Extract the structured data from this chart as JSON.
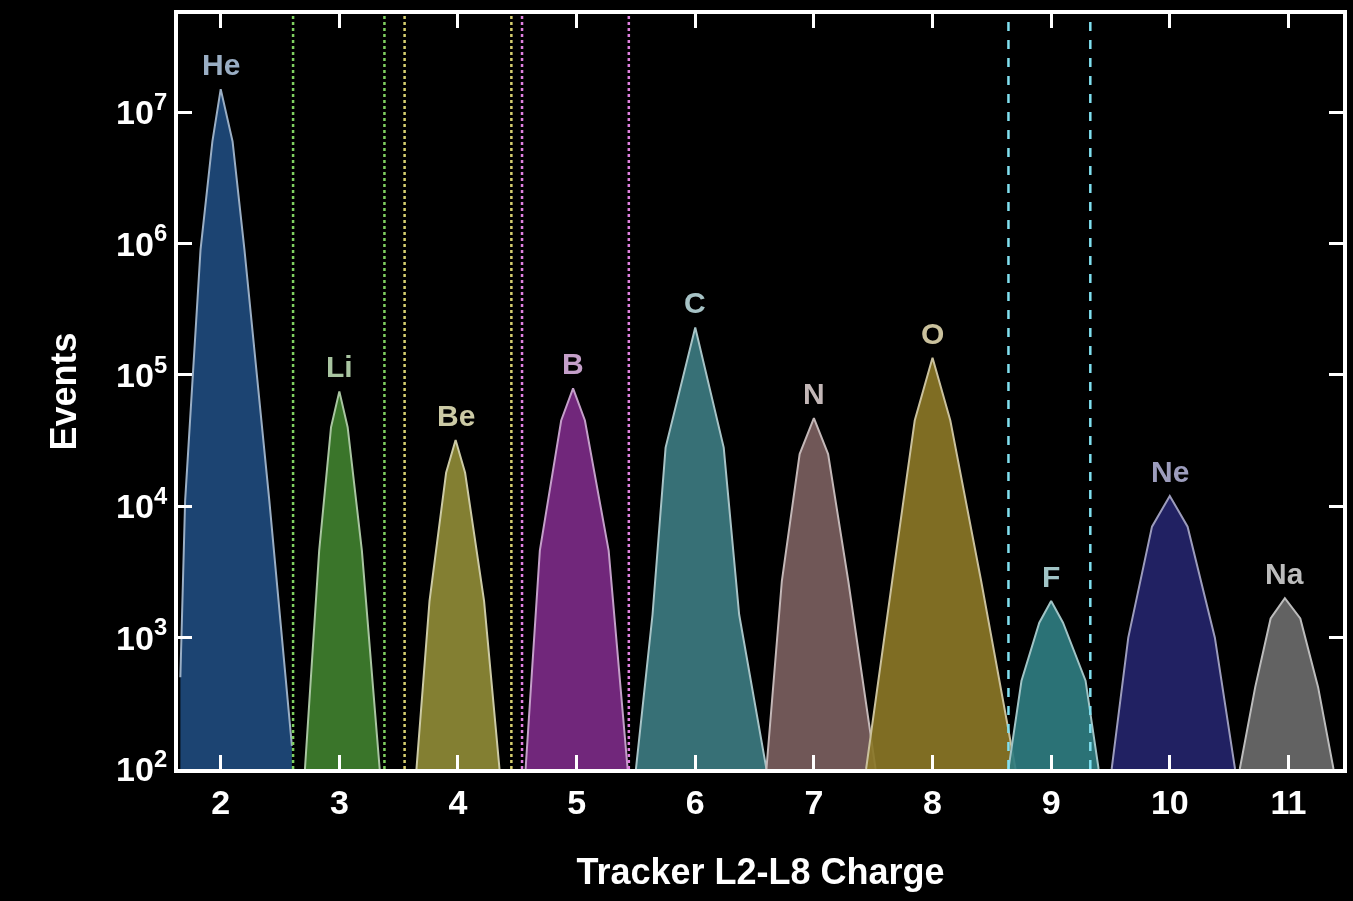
{
  "chart_data": {
    "type": "area",
    "xlabel": "Tracker L2-L8 Charge",
    "ylabel": "Events",
    "log": "y",
    "grid": false,
    "legend": false,
    "line_style": "solid",
    "marker": "none",
    "xlim": [
      1.64,
      11.46
    ],
    "xticks": [
      2,
      3,
      4,
      5,
      6,
      7,
      8,
      9,
      10,
      11
    ],
    "ylim": [
      100,
      56000000
    ],
    "yticks": [
      {
        "value": 100,
        "label": "10$^{2}$"
      },
      {
        "value": 1000,
        "label": "10$^{3}$"
      },
      {
        "value": 10000,
        "label": "10$^{4}$"
      },
      {
        "value": 100000,
        "label": "10$^{5}$"
      },
      {
        "value": 1000000,
        "label": "10$^{6}$"
      },
      {
        "value": 10000000,
        "label": "10$^{7}$"
      }
    ],
    "series": [
      {
        "name": "He",
        "color": "#1e4a7c",
        "x": [
          1.66,
          1.7,
          1.83,
          1.93,
          2.0,
          2.1,
          2.2,
          2.41,
          2.6
        ],
        "values": [
          500,
          11000,
          900000,
          6000000,
          15000000,
          6000000,
          900000,
          11000,
          150
        ]
      },
      {
        "name": "Li",
        "color": "#3f7f2e",
        "x": [
          2.71,
          2.83,
          2.93,
          3.0,
          3.07,
          3.19,
          3.34
        ],
        "values": [
          100,
          4600,
          40000,
          75000,
          40000,
          4600,
          100
        ]
      },
      {
        "name": "Be",
        "color": "#8e8a36",
        "x": [
          3.65,
          3.76,
          3.9,
          3.98,
          4.06,
          4.22,
          4.35
        ],
        "values": [
          100,
          1900,
          18000,
          32000,
          18000,
          1900,
          100
        ]
      },
      {
        "name": "B",
        "color": "#7b2a86",
        "x": [
          4.57,
          4.69,
          4.87,
          4.97,
          5.07,
          5.27,
          5.43
        ],
        "values": [
          100,
          4600,
          45000,
          79000,
          45000,
          4600,
          100
        ]
      },
      {
        "name": "C",
        "color": "#3c7a80",
        "x": [
          5.5,
          5.64,
          5.75,
          6.0,
          6.24,
          6.37,
          6.6
        ],
        "values": [
          100,
          1500,
          28000,
          230000,
          28000,
          1500,
          100
        ]
      },
      {
        "name": "N",
        "color": "#7a5e5e",
        "x": [
          6.6,
          6.73,
          6.88,
          7.0,
          7.12,
          7.29,
          7.52
        ],
        "values": [
          100,
          2700,
          25000,
          47000,
          25000,
          2700,
          100
        ]
      },
      {
        "name": "O",
        "color": "#8a7626",
        "x": [
          7.44,
          7.66,
          7.85,
          8.0,
          8.15,
          8.41,
          8.7
        ],
        "values": [
          100,
          2700,
          45000,
          135000,
          45000,
          2700,
          100
        ]
      },
      {
        "name": "F",
        "color": "#2f7c80",
        "x": [
          8.64,
          8.75,
          8.9,
          9.0,
          9.1,
          9.29,
          9.4
        ],
        "values": [
          100,
          470,
          1300,
          1900,
          1300,
          470,
          100
        ]
      },
      {
        "name": "Ne",
        "color": "#24246a",
        "x": [
          9.51,
          9.65,
          9.85,
          10.0,
          10.15,
          10.38,
          10.55
        ],
        "values": [
          100,
          1000,
          7000,
          12000,
          7000,
          1000,
          100
        ]
      },
      {
        "name": "Na",
        "color": "#6a6a6a",
        "x": [
          10.59,
          10.72,
          10.85,
          10.97,
          11.1,
          11.25,
          11.38
        ],
        "values": [
          100,
          420,
          1400,
          2000,
          1400,
          420,
          100
        ]
      }
    ],
    "ref_lines": [
      {
        "axis": "x",
        "value": 2.61,
        "color": "#7fd060",
        "line_style": "dotted"
      },
      {
        "axis": "x",
        "value": 3.38,
        "color": "#7fd060",
        "line_style": "dotted"
      },
      {
        "axis": "x",
        "value": 3.55,
        "color": "#d8d070",
        "line_style": "dotted"
      },
      {
        "axis": "x",
        "value": 4.45,
        "color": "#d8d070",
        "line_style": "dotted"
      },
      {
        "axis": "x",
        "value": 4.54,
        "color": "#e080e0",
        "line_style": "dotted"
      },
      {
        "axis": "x",
        "value": 5.44,
        "color": "#e080e0",
        "line_style": "dotted"
      },
      {
        "axis": "x",
        "value": 8.64,
        "color": "#80e0f0",
        "line_style": "dashed"
      },
      {
        "axis": "x",
        "value": 9.33,
        "color": "#80e0f0",
        "line_style": "dashed"
      }
    ]
  }
}
